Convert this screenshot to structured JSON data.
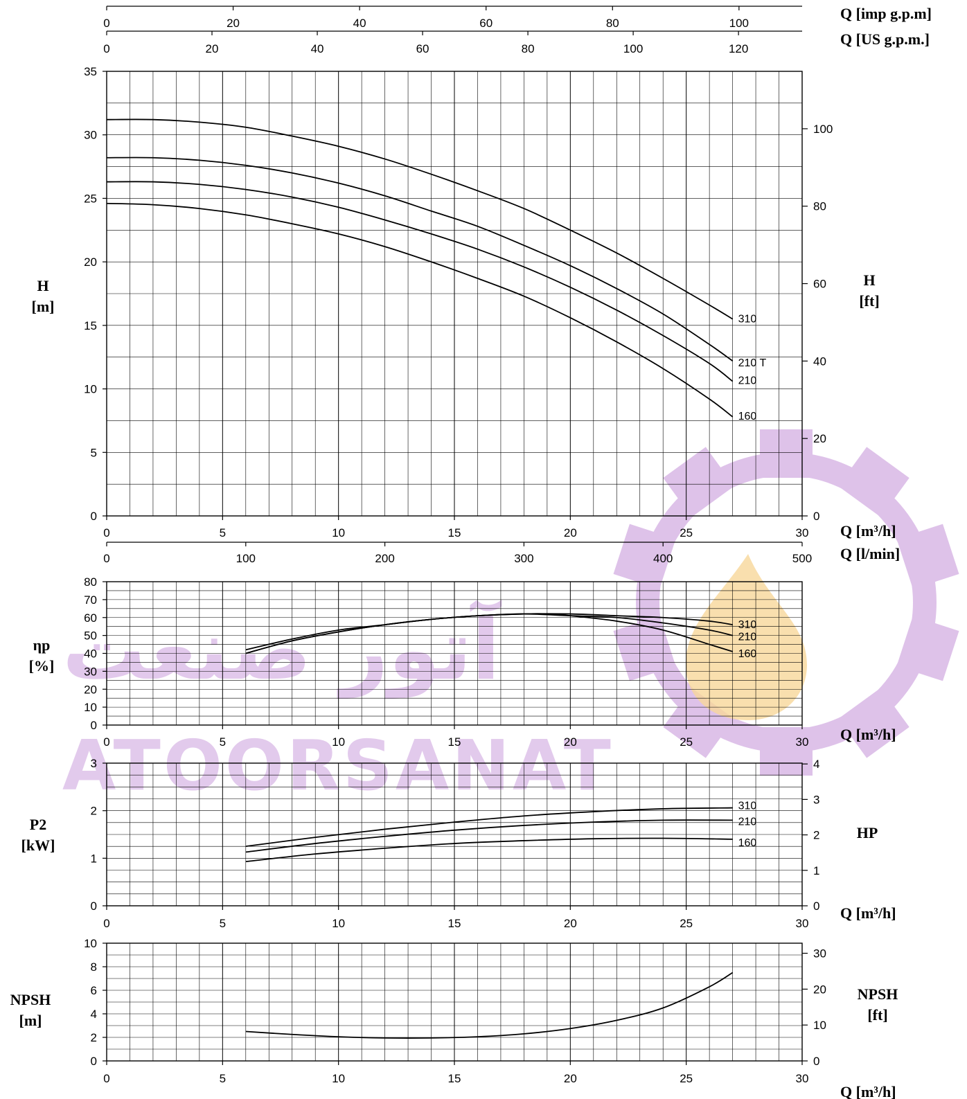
{
  "watermark": {
    "latin_text": "ATOORSANAT",
    "persian_text": "آتور صنعت",
    "color": "#d9b8e6",
    "flame_color": "#f7d79a"
  },
  "top_axes": {
    "imp_gpm": {
      "label": "Q [imp g.p.m]",
      "ticks": [
        "0",
        "20",
        "40",
        "60",
        "80",
        "100"
      ],
      "values": [
        0,
        20,
        40,
        60,
        80,
        100
      ],
      "per_m3h": 3.6662
    },
    "us_gpm": {
      "label": "Q [US g.p.m.]",
      "ticks": [
        "0",
        "20",
        "40",
        "60",
        "80",
        "100",
        "120"
      ],
      "values": [
        0,
        20,
        40,
        60,
        80,
        100,
        120
      ],
      "per_m3h": 4.4029
    }
  },
  "chart_data": [
    {
      "type": "line",
      "name": "head",
      "ylabel": "H",
      "yunit": "[m]",
      "y2label": "H",
      "y2unit": "[ft]",
      "xlabel": "Q [m³/h]",
      "x2label": "Q [l/min]",
      "xlim": [
        0,
        30
      ],
      "ylim": [
        0,
        35
      ],
      "xticks": [
        "0",
        "5",
        "10",
        "15",
        "20",
        "25",
        "30"
      ],
      "yticks": [
        "0",
        "5",
        "10",
        "15",
        "20",
        "25",
        "30",
        "35"
      ],
      "y2ticks": [
        "0",
        "20",
        "40",
        "60",
        "80",
        "100"
      ],
      "y2_per_y": 3.2808,
      "x2ticks": [
        "0",
        "100",
        "200",
        "300",
        "400",
        "500"
      ],
      "x2_per_x": 16.6667,
      "grid": true,
      "series": [
        {
          "name": "310",
          "x": [
            0,
            2,
            4,
            6,
            8,
            10,
            12,
            14,
            16,
            18,
            20,
            22,
            24,
            26,
            27
          ],
          "y": [
            31.2,
            31.2,
            31.0,
            30.6,
            29.9,
            29.1,
            28.1,
            26.9,
            25.6,
            24.2,
            22.5,
            20.7,
            18.7,
            16.6,
            15.5
          ]
        },
        {
          "name": "210 T",
          "x": [
            0,
            2,
            4,
            6,
            8,
            10,
            12,
            14,
            16,
            18,
            20,
            22,
            24,
            26,
            27
          ],
          "y": [
            28.2,
            28.2,
            28.0,
            27.6,
            27.0,
            26.2,
            25.2,
            24.0,
            22.8,
            21.3,
            19.7,
            17.9,
            15.9,
            13.5,
            12.2
          ]
        },
        {
          "name": "210",
          "x": [
            0,
            2,
            4,
            6,
            8,
            10,
            12,
            14,
            16,
            18,
            20,
            22,
            24,
            26,
            27
          ],
          "y": [
            26.3,
            26.3,
            26.1,
            25.7,
            25.1,
            24.3,
            23.3,
            22.2,
            21.0,
            19.6,
            18.0,
            16.2,
            14.2,
            12.0,
            10.6
          ]
        },
        {
          "name": "160",
          "x": [
            0,
            2,
            4,
            6,
            8,
            10,
            12,
            14,
            16,
            18,
            20,
            22,
            24,
            26,
            27
          ],
          "y": [
            24.6,
            24.5,
            24.2,
            23.7,
            23.0,
            22.2,
            21.2,
            20.0,
            18.7,
            17.3,
            15.6,
            13.7,
            11.6,
            9.2,
            7.8
          ]
        }
      ]
    },
    {
      "type": "line",
      "name": "efficiency",
      "ylabel": "ηp",
      "yunit": "[%]",
      "xlabel": "Q [m³/h]",
      "xlim": [
        0,
        30
      ],
      "ylim": [
        0,
        80
      ],
      "xticks": [
        "0",
        "5",
        "10",
        "15",
        "20",
        "25",
        "30"
      ],
      "yticks": [
        "0",
        "10",
        "20",
        "30",
        "40",
        "50",
        "60",
        "70",
        "80"
      ],
      "grid": true,
      "series": [
        {
          "name": "310",
          "x": [
            6,
            8,
            10,
            12,
            14,
            16,
            18,
            20,
            22,
            24,
            26,
            27
          ],
          "y": [
            40,
            47,
            52,
            56,
            59,
            61,
            62,
            62,
            61,
            60,
            58,
            56
          ]
        },
        {
          "name": "210",
          "x": [
            6,
            8,
            10,
            12,
            14,
            16,
            18,
            20,
            22,
            24,
            26,
            27
          ],
          "y": [
            42,
            48,
            53,
            56,
            59,
            61,
            62,
            61,
            60,
            57,
            53,
            50
          ]
        },
        {
          "name": "160",
          "x": [
            6,
            8,
            10,
            12,
            14,
            16,
            18,
            19,
            20,
            22,
            24,
            26,
            27
          ],
          "y": [
            40,
            47,
            52,
            56,
            59,
            61,
            62,
            62,
            61,
            58,
            53,
            45,
            41
          ]
        }
      ]
    },
    {
      "type": "line",
      "name": "power",
      "ylabel": "P2",
      "yunit": "[kW]",
      "y2label": "HP",
      "xlabel": "Q [m³/h]",
      "xlim": [
        0,
        30
      ],
      "ylim": [
        0,
        3
      ],
      "xticks": [
        "0",
        "5",
        "10",
        "15",
        "20",
        "25",
        "30"
      ],
      "yticks": [
        "0",
        "1",
        "2",
        "3"
      ],
      "y2ticks": [
        "0",
        "1",
        "2",
        "3",
        "4"
      ],
      "y2_per_y": 1.341,
      "grid": true,
      "series": [
        {
          "name": "310",
          "x": [
            6,
            9,
            12,
            15,
            18,
            21,
            24,
            27
          ],
          "y": [
            1.25,
            1.44,
            1.61,
            1.76,
            1.89,
            1.98,
            2.04,
            2.06
          ]
        },
        {
          "name": "210",
          "x": [
            6,
            9,
            12,
            15,
            18,
            21,
            24,
            27
          ],
          "y": [
            1.13,
            1.31,
            1.46,
            1.59,
            1.69,
            1.76,
            1.8,
            1.8
          ]
        },
        {
          "name": "160",
          "x": [
            6,
            9,
            12,
            15,
            18,
            21,
            24,
            27
          ],
          "y": [
            0.93,
            1.09,
            1.21,
            1.31,
            1.37,
            1.41,
            1.42,
            1.4
          ]
        }
      ]
    },
    {
      "type": "line",
      "name": "npsh",
      "ylabel": "NPSH",
      "yunit": "[m]",
      "y2label": "NPSH",
      "y2unit": "[ft]",
      "xlabel": "Q [m³/h]",
      "xlim": [
        0,
        30
      ],
      "ylim": [
        0,
        10
      ],
      "xticks": [
        "0",
        "5",
        "10",
        "15",
        "20",
        "25",
        "30"
      ],
      "yticks": [
        "0",
        "2",
        "4",
        "6",
        "8",
        "10"
      ],
      "y2ticks": [
        "0",
        "10",
        "20",
        "30"
      ],
      "y2_per_y": 3.2808,
      "grid": true,
      "series": [
        {
          "x": [
            6,
            8,
            10,
            12,
            14,
            16,
            18,
            20,
            22,
            24,
            26,
            27
          ],
          "y": [
            2.5,
            2.25,
            2.05,
            1.95,
            1.95,
            2.05,
            2.3,
            2.75,
            3.45,
            4.5,
            6.3,
            7.5
          ]
        }
      ]
    }
  ]
}
